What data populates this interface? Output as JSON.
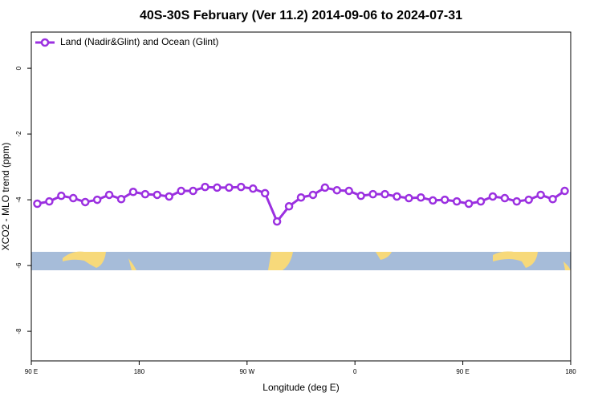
{
  "chart_data": {
    "type": "line",
    "title": "40S-30S February (Ver 11.2)   2014-09-06 to 2024-07-31",
    "xlabel": "Longitude (deg E)",
    "ylabel": "XCO2 - MLO trend (ppm)",
    "x": [
      95,
      105,
      115,
      125,
      135,
      145,
      155,
      165,
      175,
      185,
      195,
      205,
      215,
      225,
      235,
      245,
      255,
      265,
      275,
      285,
      295,
      305,
      315,
      325,
      335,
      345,
      355,
      365,
      375,
      385,
      395,
      405,
      415,
      425,
      435,
      445,
      455,
      465,
      475,
      485,
      495,
      505,
      515,
      525,
      535
    ],
    "series": [
      {
        "name": "Land (Nadir&Glint) and Ocean (Glint)",
        "color": "#9b30e0",
        "values": [
          -4.12,
          -4.05,
          -3.88,
          -3.95,
          -4.07,
          -4.0,
          -3.85,
          -3.98,
          -3.76,
          -3.83,
          -3.85,
          -3.9,
          -3.73,
          -3.73,
          -3.61,
          -3.63,
          -3.63,
          -3.61,
          -3.66,
          -3.8,
          -4.66,
          -4.2,
          -3.93,
          -3.85,
          -3.63,
          -3.71,
          -3.73,
          -3.88,
          -3.83,
          -3.83,
          -3.9,
          -3.95,
          -3.93,
          -4.02,
          -4.0,
          -4.05,
          -4.12,
          -4.05,
          -3.9,
          -3.95,
          -4.05,
          -4.0,
          -3.85,
          -3.98,
          -3.73
        ]
      }
    ],
    "xlim": [
      90,
      540
    ],
    "xticks": [
      {
        "value": 90,
        "label": "90 E"
      },
      {
        "value": 180,
        "label": "180"
      },
      {
        "value": 270,
        "label": "90 W"
      },
      {
        "value": 360,
        "label": "0"
      },
      {
        "value": 450,
        "label": "90 E"
      },
      {
        "value": 540,
        "label": "180"
      }
    ],
    "ylim": [
      -8.9,
      1.1
    ],
    "yticks": [
      0,
      -2,
      -4,
      -6,
      -8
    ],
    "legend": "upper left"
  }
}
